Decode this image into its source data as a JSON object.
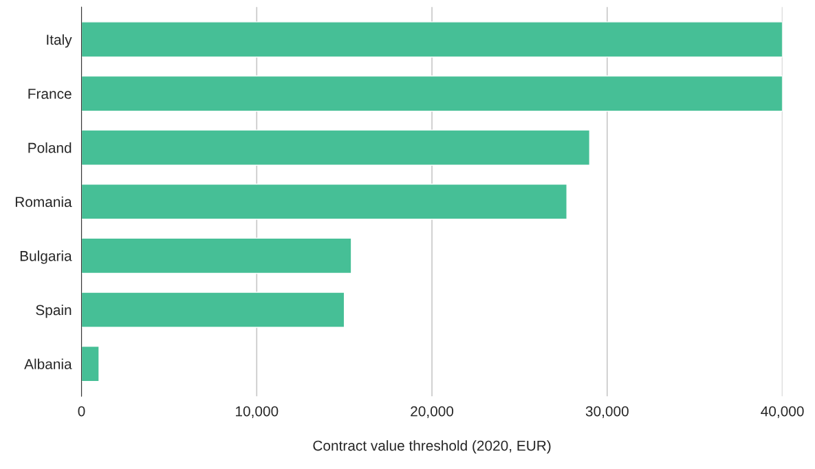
{
  "chart_data": {
    "type": "bar",
    "orientation": "horizontal",
    "xlabel": "Contract value threshold (2020, EUR)",
    "categories": [
      "Italy",
      "France",
      "Poland",
      "Romania",
      "Bulgaria",
      "Spain",
      "Albania"
    ],
    "values": [
      40000,
      40000,
      29000,
      27700,
      15400,
      15000,
      1000
    ],
    "color": "#46bf96",
    "xlim": [
      0,
      40000
    ],
    "xticks": [
      0,
      {
        "value": 10000,
        "label": "10,000"
      },
      {
        "value": 20000,
        "label": "20,000"
      },
      {
        "value": 30000,
        "label": "30,000"
      },
      {
        "value": 40000,
        "label": "40,000"
      }
    ],
    "grid": "x",
    "legend": false
  }
}
